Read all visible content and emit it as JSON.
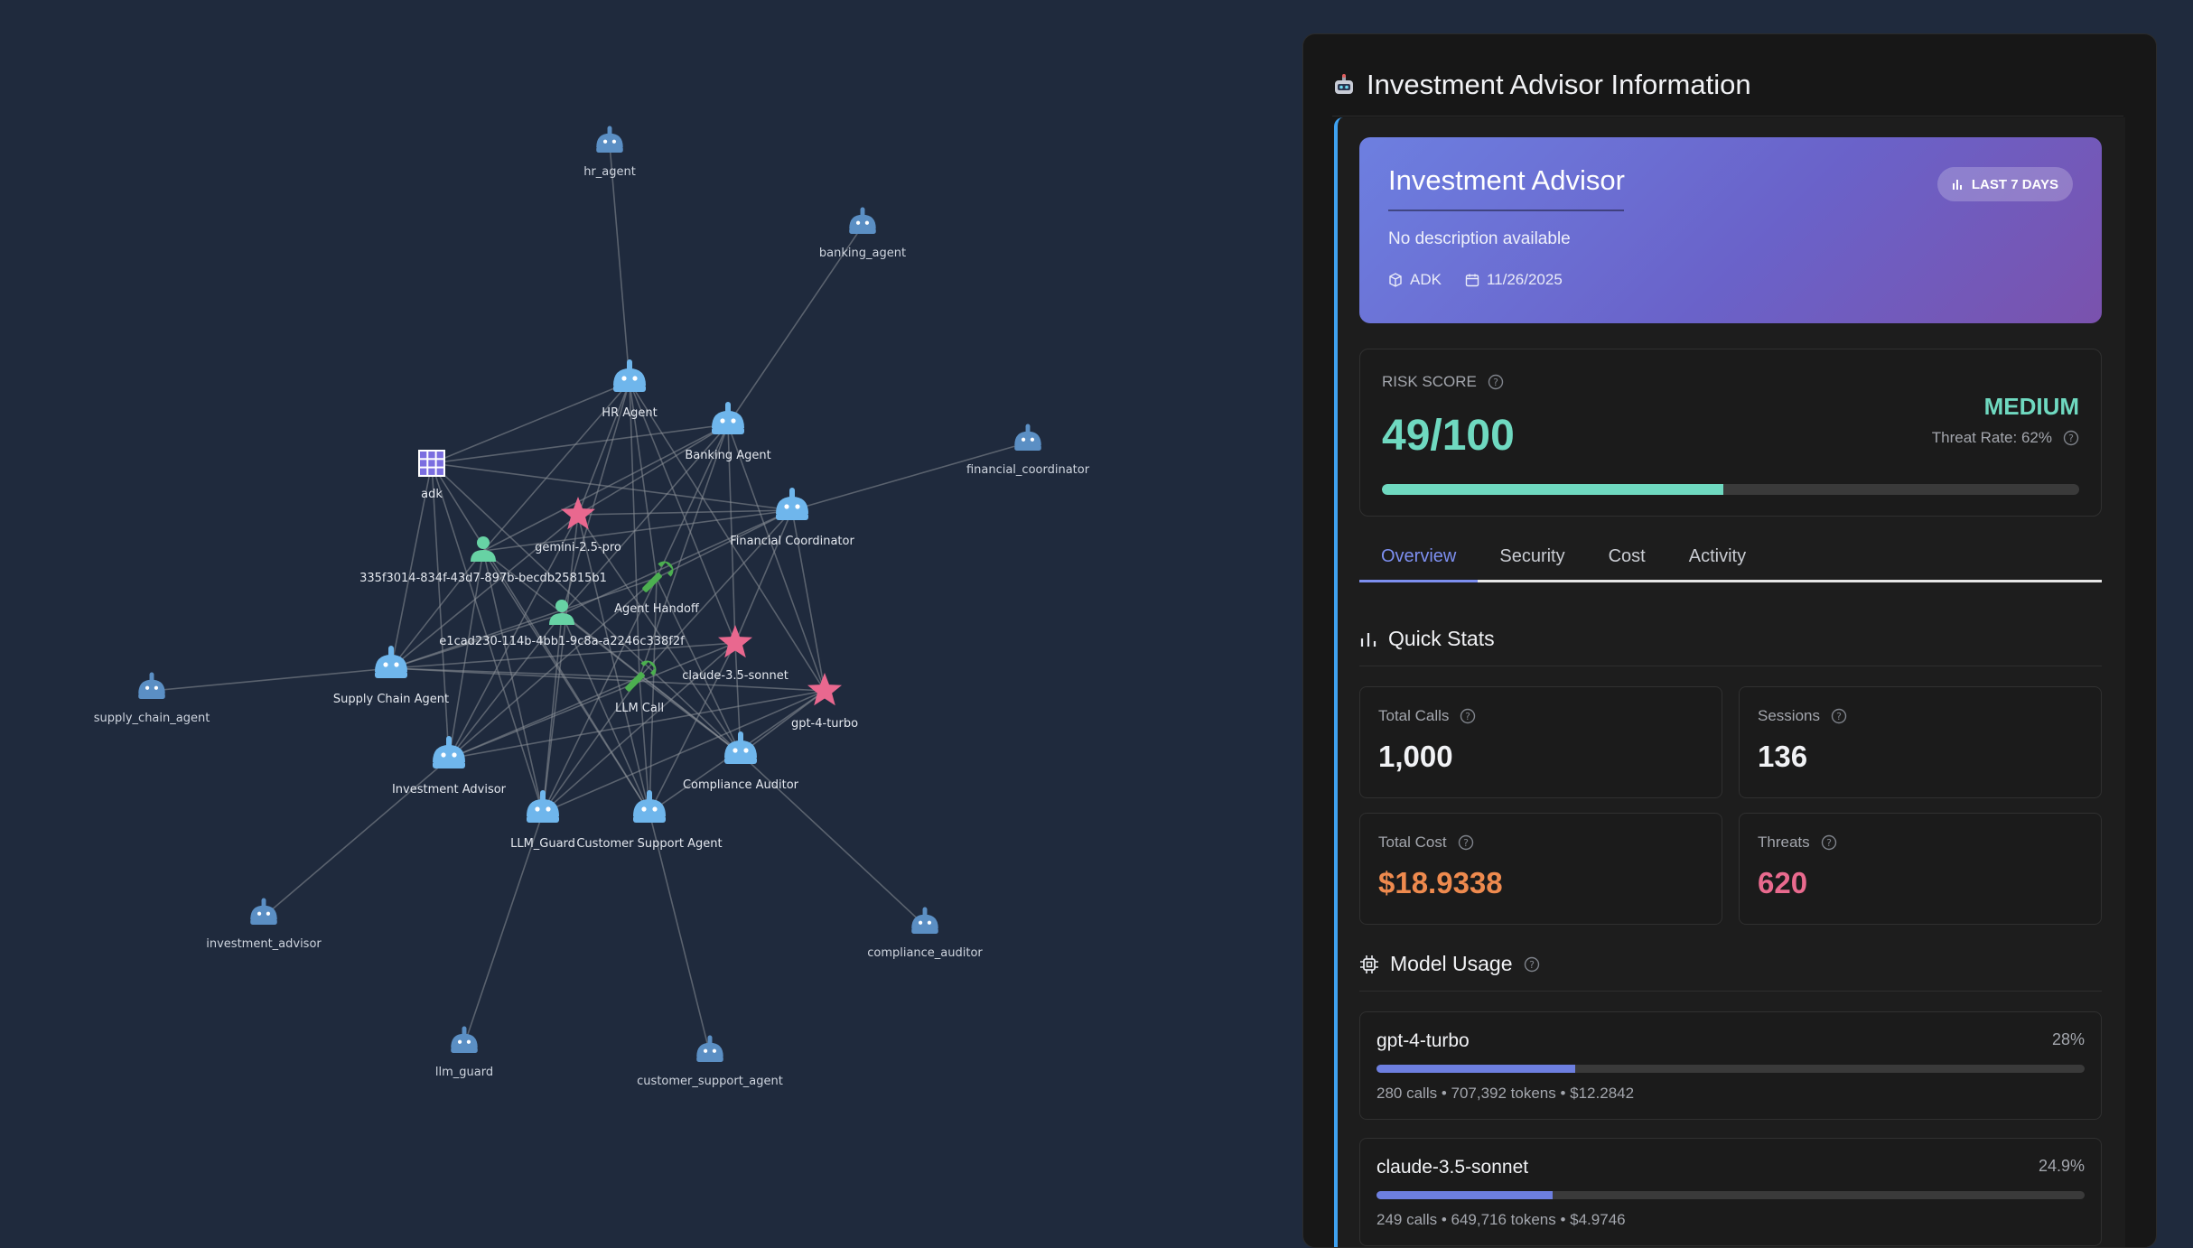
{
  "graph": {
    "nodes": [
      {
        "id": "hr_agent",
        "label": "hr_agent",
        "kind": "agent-dim"
      },
      {
        "id": "banking_agent",
        "label": "banking_agent",
        "kind": "agent-dim"
      },
      {
        "id": "financial_coordinator",
        "label": "financial_coordinator",
        "kind": "agent-dim"
      },
      {
        "id": "supply_chain_agent",
        "label": "supply_chain_agent",
        "kind": "agent-dim"
      },
      {
        "id": "investment_advisor",
        "label": "investment_advisor",
        "kind": "agent-dim"
      },
      {
        "id": "compliance_auditor",
        "label": "compliance_auditor",
        "kind": "agent-dim"
      },
      {
        "id": "llm_guard",
        "label": "llm_guard",
        "kind": "agent-dim"
      },
      {
        "id": "customer_support_agent",
        "label": "customer_support_agent",
        "kind": "agent-dim"
      },
      {
        "id": "HR Agent",
        "label": "HR Agent",
        "kind": "agent"
      },
      {
        "id": "Banking Agent",
        "label": "Banking Agent",
        "kind": "agent"
      },
      {
        "id": "adk",
        "label": "adk",
        "kind": "framework"
      },
      {
        "id": "gemini-2.5-pro",
        "label": "gemini-2.5-pro",
        "kind": "model"
      },
      {
        "id": "Financial Coordinator",
        "label": "Financial Coordinator",
        "kind": "agent"
      },
      {
        "id": "user1",
        "label": "335f3014-834f-43d7-897b-becdb25815b1",
        "kind": "user"
      },
      {
        "id": "Agent Handoff",
        "label": "Agent Handoff",
        "kind": "tool"
      },
      {
        "id": "user2",
        "label": "e1cad230-114b-4bb1-9c8a-a2246c338f2f",
        "kind": "user"
      },
      {
        "id": "claude-3.5-sonnet",
        "label": "claude-3.5-sonnet",
        "kind": "model"
      },
      {
        "id": "Supply Chain Agent",
        "label": "Supply Chain Agent",
        "kind": "agent"
      },
      {
        "id": "LLM Call",
        "label": "LLM Call",
        "kind": "tool"
      },
      {
        "id": "gpt-4-turbo",
        "label": "gpt-4-turbo",
        "kind": "model"
      },
      {
        "id": "Investment Advisor",
        "label": "Investment Advisor",
        "kind": "agent"
      },
      {
        "id": "Compliance Auditor",
        "label": "Compliance Auditor",
        "kind": "agent"
      },
      {
        "id": "LLM_Guard",
        "label": "LLM_Guard",
        "kind": "agent"
      },
      {
        "id": "Customer Support Agent",
        "label": "Customer Support Agent",
        "kind": "agent"
      }
    ],
    "edges": [
      [
        "hr_agent",
        "HR Agent"
      ],
      [
        "banking_agent",
        "Banking Agent"
      ],
      [
        "financial_coordinator",
        "Financial Coordinator"
      ],
      [
        "supply_chain_agent",
        "Supply Chain Agent"
      ],
      [
        "investment_advisor",
        "Investment Advisor"
      ],
      [
        "compliance_auditor",
        "Compliance Auditor"
      ],
      [
        "llm_guard",
        "LLM_Guard"
      ],
      [
        "customer_support_agent",
        "Customer Support Agent"
      ],
      [
        "adk",
        "HR Agent"
      ],
      [
        "adk",
        "Banking Agent"
      ],
      [
        "adk",
        "Financial Coordinator"
      ],
      [
        "adk",
        "Supply Chain Agent"
      ],
      [
        "adk",
        "Investment Advisor"
      ],
      [
        "adk",
        "Compliance Auditor"
      ],
      [
        "adk",
        "LLM_Guard"
      ],
      [
        "adk",
        "Customer Support Agent"
      ],
      [
        "gemini-2.5-pro",
        "HR Agent"
      ],
      [
        "gemini-2.5-pro",
        "Banking Agent"
      ],
      [
        "gemini-2.5-pro",
        "Financial Coordinator"
      ],
      [
        "gemini-2.5-pro",
        "Supply Chain Agent"
      ],
      [
        "gemini-2.5-pro",
        "Investment Advisor"
      ],
      [
        "gemini-2.5-pro",
        "Compliance Auditor"
      ],
      [
        "gemini-2.5-pro",
        "LLM_Guard"
      ],
      [
        "gemini-2.5-pro",
        "Customer Support Agent"
      ],
      [
        "claude-3.5-sonnet",
        "HR Agent"
      ],
      [
        "claude-3.5-sonnet",
        "Banking Agent"
      ],
      [
        "claude-3.5-sonnet",
        "Financial Coordinator"
      ],
      [
        "claude-3.5-sonnet",
        "Supply Chain Agent"
      ],
      [
        "claude-3.5-sonnet",
        "Investment Advisor"
      ],
      [
        "claude-3.5-sonnet",
        "Compliance Auditor"
      ],
      [
        "claude-3.5-sonnet",
        "LLM_Guard"
      ],
      [
        "claude-3.5-sonnet",
        "Customer Support Agent"
      ],
      [
        "gpt-4-turbo",
        "HR Agent"
      ],
      [
        "gpt-4-turbo",
        "Banking Agent"
      ],
      [
        "gpt-4-turbo",
        "Financial Coordinator"
      ],
      [
        "gpt-4-turbo",
        "Supply Chain Agent"
      ],
      [
        "gpt-4-turbo",
        "Investment Advisor"
      ],
      [
        "gpt-4-turbo",
        "Compliance Auditor"
      ],
      [
        "gpt-4-turbo",
        "LLM_Guard"
      ],
      [
        "gpt-4-turbo",
        "Customer Support Agent"
      ],
      [
        "user1",
        "HR Agent"
      ],
      [
        "user1",
        "Banking Agent"
      ],
      [
        "user1",
        "Financial Coordinator"
      ],
      [
        "user1",
        "Supply Chain Agent"
      ],
      [
        "user1",
        "Investment Advisor"
      ],
      [
        "user1",
        "Compliance Auditor"
      ],
      [
        "user1",
        "LLM_Guard"
      ],
      [
        "user1",
        "Customer Support Agent"
      ],
      [
        "user2",
        "HR Agent"
      ],
      [
        "user2",
        "Banking Agent"
      ],
      [
        "user2",
        "Financial Coordinator"
      ],
      [
        "user2",
        "Supply Chain Agent"
      ],
      [
        "user2",
        "Investment Advisor"
      ],
      [
        "user2",
        "Compliance Auditor"
      ],
      [
        "user2",
        "LLM_Guard"
      ],
      [
        "user2",
        "Customer Support Agent"
      ],
      [
        "Agent Handoff",
        "HR Agent"
      ],
      [
        "Agent Handoff",
        "Banking Agent"
      ],
      [
        "Agent Handoff",
        "Financial Coordinator"
      ],
      [
        "Agent Handoff",
        "Supply Chain Agent"
      ],
      [
        "Agent Handoff",
        "Investment Advisor"
      ],
      [
        "Agent Handoff",
        "Compliance Auditor"
      ],
      [
        "Agent Handoff",
        "LLM_Guard"
      ],
      [
        "Agent Handoff",
        "Customer Support Agent"
      ],
      [
        "LLM Call",
        "HR Agent"
      ],
      [
        "LLM Call",
        "Banking Agent"
      ],
      [
        "LLM Call",
        "Financial Coordinator"
      ],
      [
        "LLM Call",
        "Supply Chain Agent"
      ],
      [
        "LLM Call",
        "Investment Advisor"
      ],
      [
        "LLM Call",
        "Compliance Auditor"
      ],
      [
        "LLM Call",
        "LLM_Guard"
      ],
      [
        "LLM Call",
        "Customer Support Agent"
      ]
    ]
  },
  "panel": {
    "title": "Investment Advisor Information",
    "hero": {
      "name": "Investment Advisor",
      "description": "No description available",
      "framework": "ADK",
      "date": "11/26/2025",
      "badge": "LAST 7 DAYS"
    },
    "risk": {
      "label": "RISK SCORE",
      "score_text": "49/100",
      "score": 49,
      "max": 100,
      "level": "MEDIUM",
      "threat_rate": "Threat Rate: 62%"
    },
    "tabs": [
      "Overview",
      "Security",
      "Cost",
      "Activity"
    ],
    "active_tab": "Overview",
    "quick_stats": {
      "title": "Quick Stats",
      "total_calls_label": "Total Calls",
      "total_calls": "1,000",
      "sessions_label": "Sessions",
      "sessions": "136",
      "total_cost_label": "Total Cost",
      "total_cost": "$18.9338",
      "threats_label": "Threats",
      "threats": "620"
    },
    "model_usage": {
      "title": "Model Usage",
      "models": [
        {
          "name": "gpt-4-turbo",
          "pct": "28%",
          "fraction": 0.28,
          "stats": "280 calls • 707,392 tokens • $12.2842"
        },
        {
          "name": "claude-3.5-sonnet",
          "pct": "24.9%",
          "fraction": 0.249,
          "stats": "249 calls • 649,716 tokens • $4.9746"
        }
      ]
    },
    "colors": {
      "accent": "#7d8ff0",
      "risk": "#6fd9c0",
      "cost": "#ee8a4e",
      "threats": "#e96a8e"
    }
  }
}
